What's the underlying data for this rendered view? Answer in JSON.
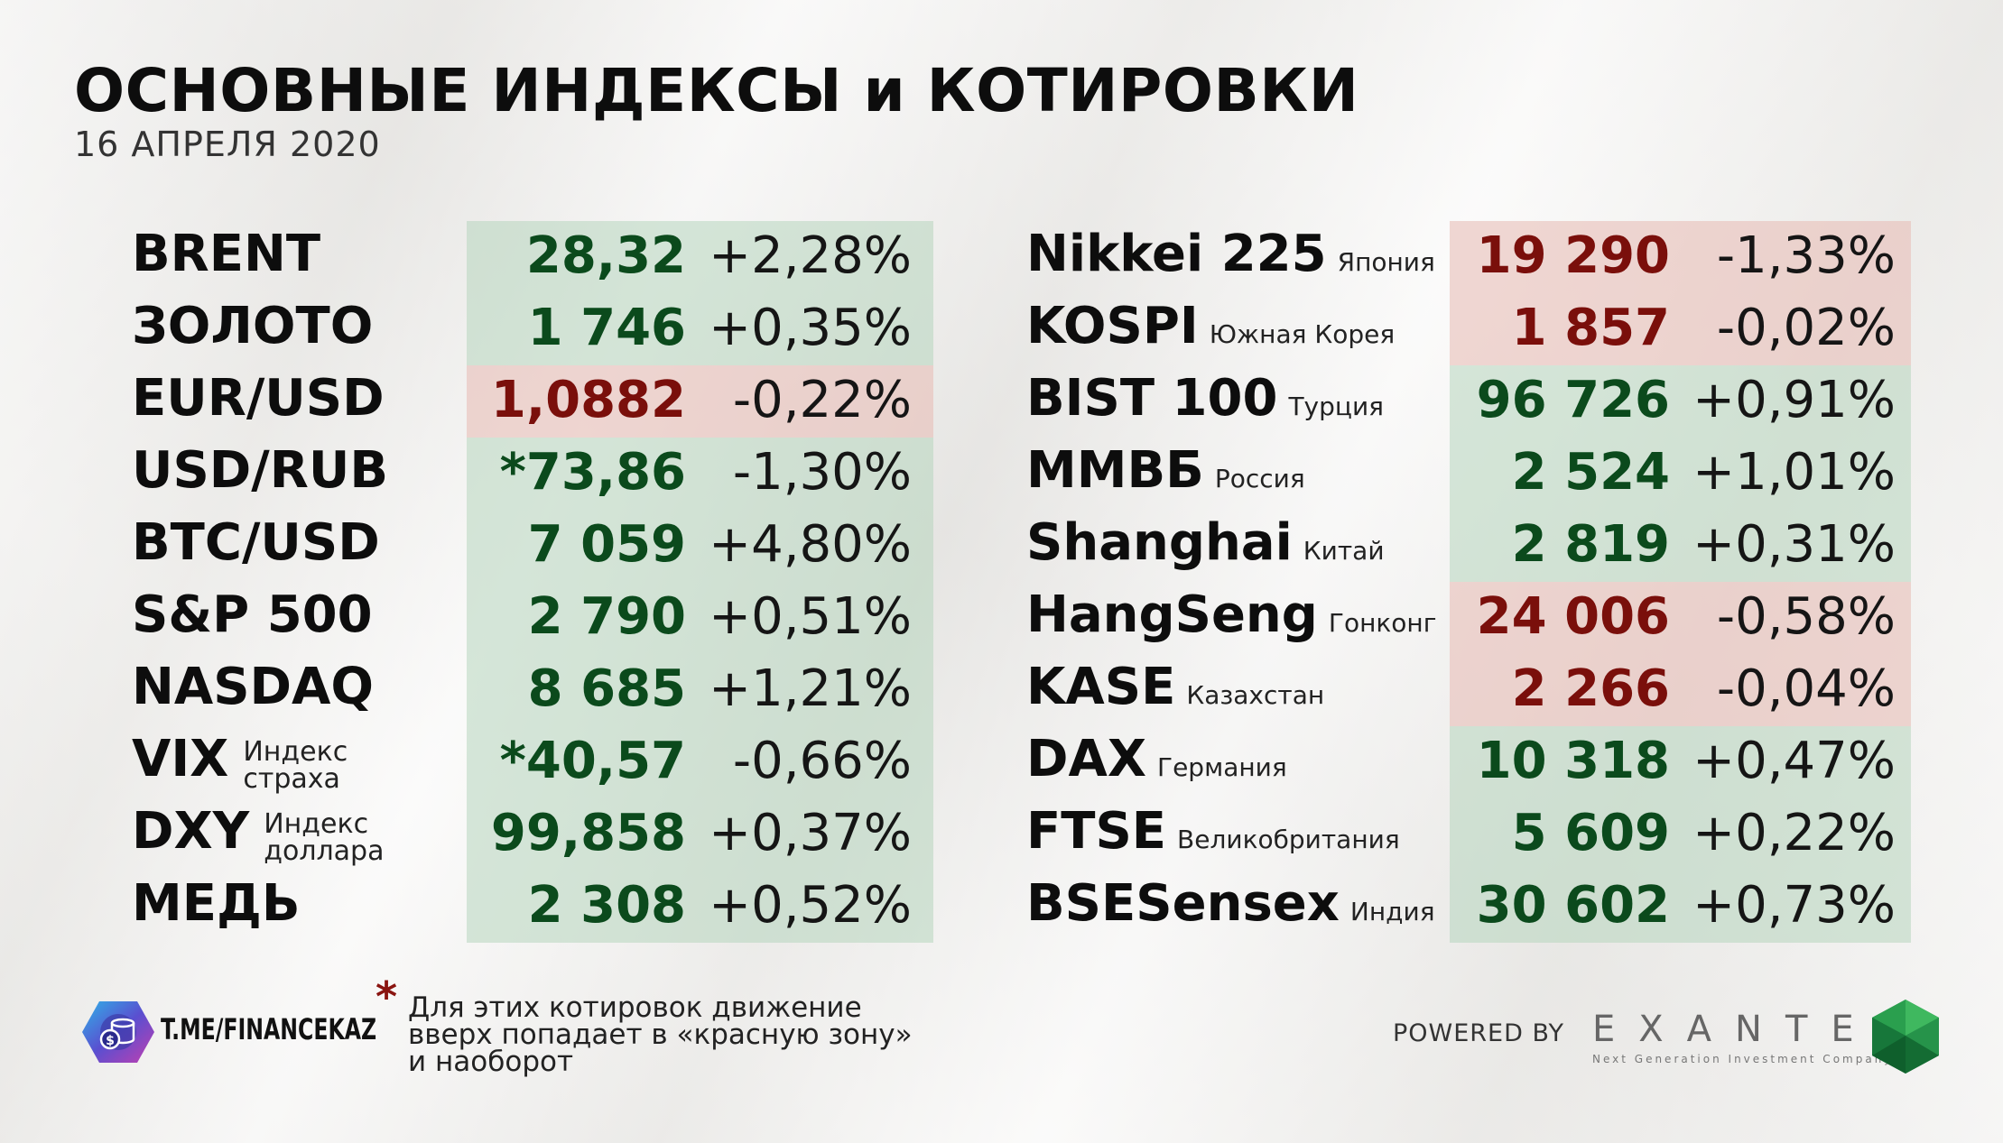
{
  "title": "ОСНОВНЫЕ ИНДЕКСЫ и КОТИРОВКИ",
  "date": "16 АПРЕЛЯ 2020",
  "left": [
    {
      "name": "BRENT",
      "value": "28,32",
      "change": "+2,28%",
      "trend": "up"
    },
    {
      "name": "ЗОЛОТО",
      "value": "1 746",
      "change": "+0,35%",
      "trend": "up"
    },
    {
      "name": "EUR/USD",
      "value": "1,0882",
      "change": "-0,22%",
      "trend": "down"
    },
    {
      "name": "USD/RUB",
      "value": "*73,86",
      "change": "-1,30%",
      "trend": "up"
    },
    {
      "name": "BTC/USD",
      "value": "7 059",
      "change": "+4,80%",
      "trend": "up"
    },
    {
      "name": "S&P 500",
      "value": "2 790",
      "change": "+0,51%",
      "trend": "up"
    },
    {
      "name": "NASDAQ",
      "value": "8 685",
      "change": "+1,21%",
      "trend": "up"
    },
    {
      "name": "VIX",
      "sub1": "Индекс",
      "sub2": "страха",
      "value": "*40,57",
      "change": "-0,66%",
      "trend": "up"
    },
    {
      "name": "DXY",
      "sub1": "Индекс",
      "sub2": "доллара",
      "value": "99,858",
      "change": "+0,37%",
      "trend": "up"
    },
    {
      "name": "МЕДЬ",
      "value": "2 308",
      "change": "+0,52%",
      "trend": "up"
    }
  ],
  "right": [
    {
      "name": "Nikkei 225",
      "country": "Япония",
      "value": "19 290",
      "change": "-1,33%",
      "trend": "down"
    },
    {
      "name": "KOSPI",
      "country": "Южная Корея",
      "value": "1 857",
      "change": "-0,02%",
      "trend": "down"
    },
    {
      "name": "BIST 100",
      "country": "Турция",
      "value": "96 726",
      "change": "+0,91%",
      "trend": "up"
    },
    {
      "name": "ММВБ",
      "country": "Россия",
      "value": "2 524",
      "change": "+1,01%",
      "trend": "up"
    },
    {
      "name": "Shanghai",
      "country": "Китай",
      "value": "2 819",
      "change": "+0,31%",
      "trend": "up"
    },
    {
      "name": "HangSeng",
      "country": "Гонконг",
      "value": "24 006",
      "change": "-0,58%",
      "trend": "down"
    },
    {
      "name": "KASE",
      "country": "Казахстан",
      "value": "2 266",
      "change": "-0,04%",
      "trend": "down"
    },
    {
      "name": "DAX",
      "country": "Германия",
      "value": "10 318",
      "change": "+0,47%",
      "trend": "up"
    },
    {
      "name": "FTSE",
      "country": "Великобритания",
      "value": "5 609",
      "change": "+0,22%",
      "trend": "up"
    },
    {
      "name": "BSESensex",
      "country": "Индия",
      "value": "30 602",
      "change": "+0,73%",
      "trend": "up"
    }
  ],
  "footer": {
    "link": "T.ME/FINANCEKAZ",
    "asterisk": "*",
    "note_lines": [
      "Для этих котировок движение",
      "вверх попадает в «красную зону»",
      "и наоборот"
    ],
    "powered_by": "POWERED BY",
    "brand": "EXANTE",
    "brand_tagline": "Next Generation Investment Company"
  },
  "colors": {
    "up_text": "#0b4a1c",
    "down_text": "#7a0f0b",
    "up_band": "#b7d6be",
    "down_band": "#e8beb8"
  }
}
